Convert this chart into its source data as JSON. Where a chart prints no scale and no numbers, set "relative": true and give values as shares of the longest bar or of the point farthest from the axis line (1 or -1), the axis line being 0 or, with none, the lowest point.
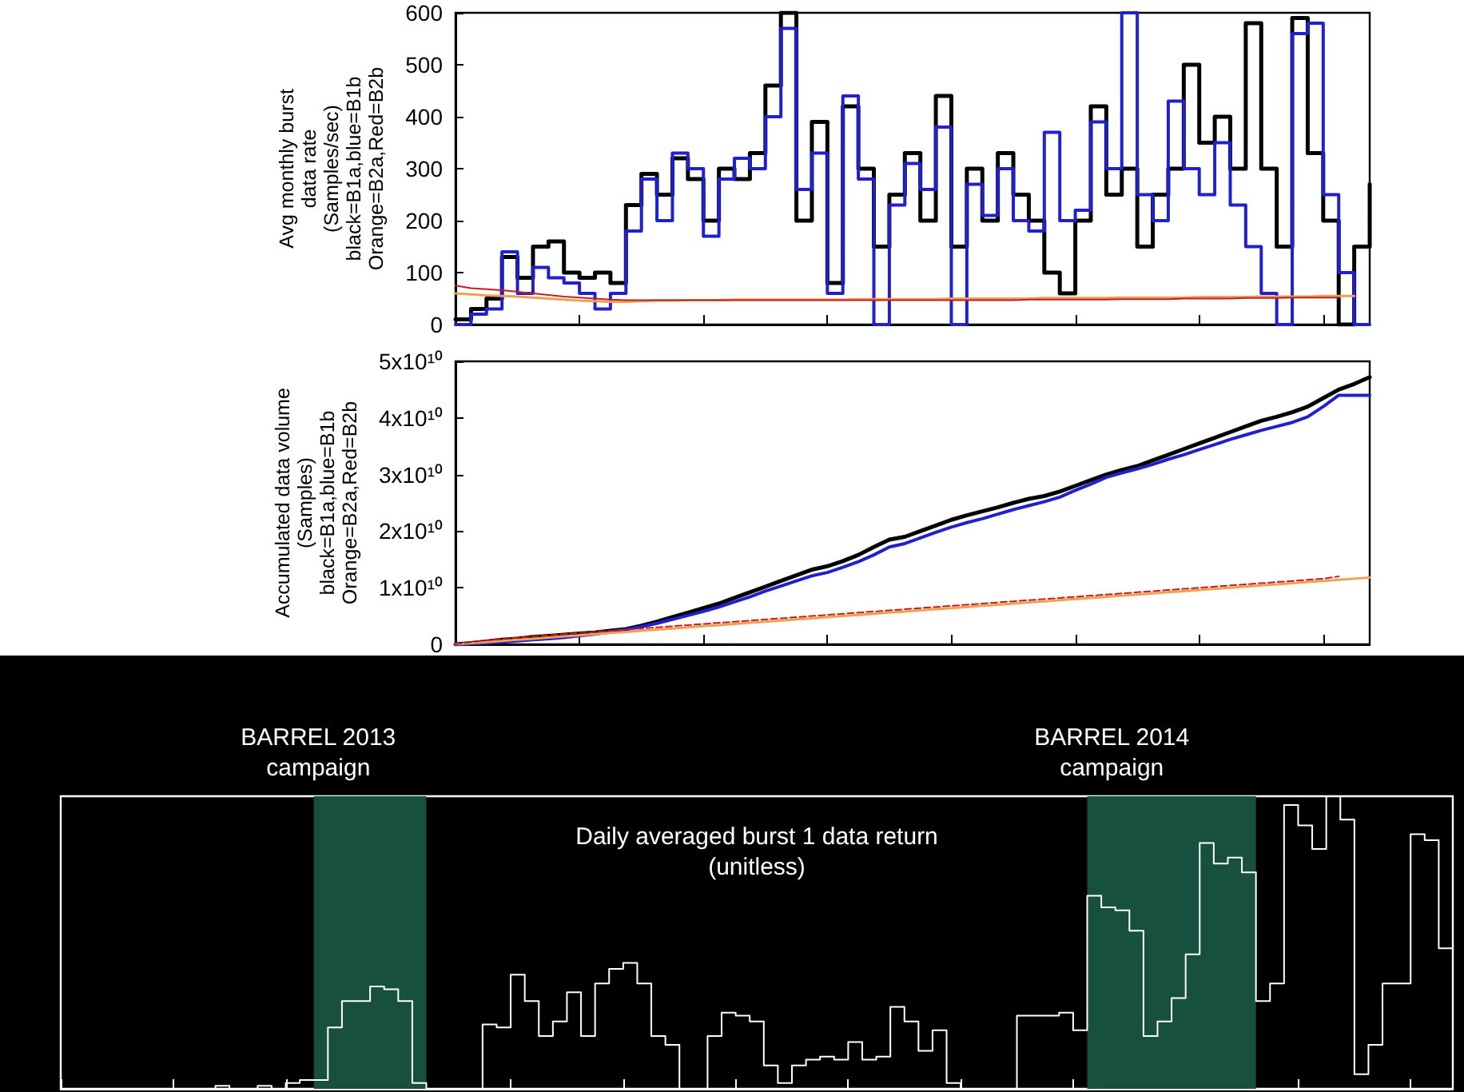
{
  "chart_data": [
    {
      "type": "step",
      "ylabel": "Avg monthly burst\ndata rate\n(Samples/sec)\nblack=B1a,blue=B1b\nOrange=B2a,Red=B2b",
      "categories": [
        null,
        null,
        null,
        null,
        null,
        null,
        null,
        null,
        null,
        null,
        null,
        null,
        null,
        null,
        null,
        null,
        null,
        null,
        null,
        null,
        null,
        null,
        null,
        null,
        null,
        null,
        null,
        null,
        null,
        null,
        null,
        null,
        null,
        null,
        null,
        null,
        null,
        null,
        null,
        null,
        null,
        null,
        null,
        null,
        null,
        null,
        null,
        null,
        null,
        null,
        null,
        null,
        null,
        null,
        null,
        null,
        null,
        null,
        null,
        null
      ],
      "ylim": [
        0,
        600
      ],
      "yticks": [
        0,
        100,
        200,
        300,
        400,
        500,
        600
      ],
      "tick_labels": "y",
      "series": [
        {
          "color": "#000000",
          "values": [
            10,
            30,
            50,
            130,
            90,
            150,
            160,
            100,
            90,
            100,
            80,
            230,
            290,
            250,
            320,
            280,
            200,
            300,
            280,
            330,
            460,
            600,
            200,
            390,
            80,
            420,
            300,
            150,
            250,
            330,
            200,
            440,
            150,
            300,
            200,
            330,
            250,
            200,
            100,
            60,
            200,
            420,
            250,
            300,
            150,
            250,
            300,
            500,
            350,
            400,
            300,
            580,
            300,
            150,
            590,
            330,
            200,
            0,
            150,
            270
          ]
        },
        {
          "color": "#2020d0",
          "values": [
            0,
            20,
            30,
            140,
            60,
            110,
            90,
            80,
            60,
            30,
            60,
            180,
            280,
            200,
            330,
            300,
            170,
            280,
            320,
            300,
            400,
            570,
            260,
            330,
            60,
            440,
            280,
            0,
            230,
            310,
            260,
            380,
            0,
            270,
            210,
            300,
            200,
            180,
            370,
            200,
            220,
            390,
            300,
            600,
            250,
            200,
            430,
            300,
            250,
            350,
            230,
            150,
            60,
            0,
            560,
            580,
            250,
            100,
            0,
            0
          ]
        },
        {
          "type": "line",
          "color": "#f0a050",
          "values": [
            60,
            58,
            56,
            55,
            54,
            52,
            50,
            48,
            46,
            45,
            44,
            44,
            45,
            46,
            46,
            47,
            47,
            47,
            48,
            48,
            48,
            48,
            48,
            48,
            48,
            48,
            49,
            49,
            49,
            49,
            49,
            49,
            50,
            50,
            50,
            50,
            50,
            50,
            51,
            51,
            51,
            51,
            51,
            52,
            52,
            52,
            52,
            52,
            53,
            53,
            53,
            53,
            54,
            54,
            54,
            54,
            55,
            55,
            55,
            null
          ]
        },
        {
          "type": "line",
          "color": "#c02020",
          "values": [
            75,
            70,
            68,
            66,
            63,
            60,
            57,
            54,
            52,
            50,
            48,
            47,
            47,
            47,
            47,
            47,
            47,
            47,
            47,
            47,
            47,
            47,
            47,
            47,
            47,
            47,
            47,
            47,
            47,
            47,
            47,
            47,
            47,
            47,
            47,
            47,
            47,
            48,
            48,
            48,
            48,
            48,
            48,
            49,
            49,
            49,
            49,
            50,
            50,
            50,
            50,
            51,
            51,
            51,
            52,
            52,
            52,
            52,
            null,
            null
          ]
        }
      ]
    },
    {
      "type": "line",
      "ylabel": "Accumulated data volume\n(Samples)\nblack=B1a,blue=B1b\nOrange=B2a,Red=B2b",
      "categories": [
        null,
        null,
        null,
        null,
        null,
        null,
        null,
        null,
        null,
        null,
        null,
        null,
        null,
        null,
        null,
        null,
        null,
        null,
        null,
        null,
        null,
        null,
        null,
        null,
        null,
        null,
        null,
        null,
        null,
        null,
        null,
        null,
        null,
        null,
        null,
        null,
        null,
        null,
        null,
        null,
        null,
        null,
        null,
        null,
        null,
        null,
        null,
        null,
        null,
        null,
        null,
        null,
        null,
        null,
        null,
        null,
        null,
        null,
        null,
        null
      ],
      "ylim": [
        0,
        50000000000
      ],
      "yticks": [
        0,
        {
          "value": 10000000000,
          "label": "1x10¹⁰"
        },
        {
          "value": 20000000000,
          "label": "2x10¹⁰"
        },
        {
          "value": 30000000000,
          "label": "3x10¹⁰"
        },
        {
          "value": 40000000000,
          "label": "4x10¹⁰"
        },
        {
          "value": 50000000000,
          "label": "5x10¹⁰"
        }
      ],
      "tick_labels": "y",
      "series": [
        {
          "color": "#000000",
          "values": [
            0,
            200000000.0,
            500000000.0,
            800000000.0,
            1000000000.0,
            1300000000.0,
            1500000000.0,
            1700000000.0,
            1900000000.0,
            2100000000.0,
            2400000000.0,
            2700000000.0,
            3300000000.0,
            4000000000.0,
            4800000000.0,
            5600000000.0,
            6400000000.0,
            7200000000.0,
            8200000000.0,
            9200000000.0,
            10200000000.0,
            11200000000.0,
            12200000000.0,
            13200000000.0,
            13800000000.0,
            14700000000.0,
            15800000000.0,
            17200000000.0,
            18500000000.0,
            19000000000.0,
            20000000000.0,
            21000000000.0,
            22000000000.0,
            22800000000.0,
            23500000000.0,
            24200000000.0,
            25000000000.0,
            25700000000.0,
            26200000000.0,
            27000000000.0,
            28000000000.0,
            29000000000.0,
            30000000000.0,
            30800000000.0,
            31500000000.0,
            32500000000.0,
            33500000000.0,
            34500000000.0,
            35500000000.0,
            36500000000.0,
            37500000000.0,
            38500000000.0,
            39500000000.0,
            40200000000.0,
            41000000000.0,
            42000000000.0,
            43500000000.0,
            45000000000.0,
            46000000000.0,
            47200000000.0
          ]
        },
        {
          "color": "#2020d0",
          "values": [
            0,
            100000000.0,
            200000000.0,
            400000000.0,
            600000000.0,
            800000000.0,
            1000000000.0,
            1200000000.0,
            1500000000.0,
            1800000000.0,
            2200000000.0,
            2600000000.0,
            3100000000.0,
            3700000000.0,
            4400000000.0,
            5100000000.0,
            5800000000.0,
            6600000000.0,
            7500000000.0,
            8400000000.0,
            9400000000.0,
            10300000000.0,
            11200000000.0,
            12100000000.0,
            12700000000.0,
            13600000000.0,
            14600000000.0,
            15800000000.0,
            17200000000.0,
            17800000000.0,
            18800000000.0,
            19800000000.0,
            20700000000.0,
            21500000000.0,
            22200000000.0,
            23000000000.0,
            23800000000.0,
            24500000000.0,
            25200000000.0,
            26000000000.0,
            27200000000.0,
            28300000000.0,
            29500000000.0,
            30300000000.0,
            31000000000.0,
            31800000000.0,
            32700000000.0,
            33500000000.0,
            34400000000.0,
            35300000000.0,
            36200000000.0,
            37000000000.0,
            37800000000.0,
            38500000000.0,
            39200000000.0,
            40200000000.0,
            42000000000.0,
            44000000000.0,
            44000000000.0,
            44000000000.0
          ]
        },
        {
          "color": "#f0a050",
          "values": [
            0,
            200000000.0,
            400000000.0,
            600000000.0,
            800000000.0,
            1000000000.0,
            1200000000.0,
            1400000000.0,
            1600000000.0,
            1800000000.0,
            2000000000.0,
            2200000000.0,
            2400000000.0,
            2600000000.0,
            2800000000.0,
            3000000000.0,
            3200000000.0,
            3400000000.0,
            3600000000.0,
            3800000000.0,
            4000000000.0,
            4200000000.0,
            4400000000.0,
            4600000000.0,
            4800000000.0,
            5000000000.0,
            5200000000.0,
            5400000000.0,
            5600000000.0,
            5800000000.0,
            6000000000.0,
            6200000000.0,
            6400000000.0,
            6600000000.0,
            6800000000.0,
            7000000000.0,
            7200000000.0,
            7400000000.0,
            7600000000.0,
            7800000000.0,
            8000000000.0,
            8200000000.0,
            8400000000.0,
            8600000000.0,
            8800000000.0,
            9000000000.0,
            9200000000.0,
            9400000000.0,
            9600000000.0,
            9800000000.0,
            10000000000.0,
            10200000000.0,
            10400000000.0,
            10600000000.0,
            10800000000.0,
            11000000000.0,
            11200000000.0,
            11400000000.0,
            11600000000.0,
            11800000000.0
          ]
        },
        {
          "color": "#c02020",
          "line_style": "dashed",
          "values": [
            0,
            400000000.0,
            700000000.0,
            1000000000.0,
            1200000000.0,
            1400000000.0,
            1600000000.0,
            1800000000.0,
            2000000000.0,
            2200000000.0,
            2400000000.0,
            2600000000.0,
            2800000000.0,
            3000000000.0,
            3200000000.0,
            3400000000.0,
            3600000000.0,
            3800000000.0,
            4000000000.0,
            4200000000.0,
            4400000000.0,
            4600000000.0,
            4800000000.0,
            5000000000.0,
            5200000000.0,
            5400000000.0,
            5600000000.0,
            5800000000.0,
            6000000000.0,
            6200000000.0,
            6400000000.0,
            6600000000.0,
            6800000000.0,
            7000000000.0,
            7200000000.0,
            7400000000.0,
            7600000000.0,
            7800000000.0,
            8000000000.0,
            8200000000.0,
            8400000000.0,
            8600000000.0,
            8800000000.0,
            9000000000.0,
            9200000000.0,
            9400000000.0,
            9600000000.0,
            9800000000.0,
            10000000000.0,
            10200000000.0,
            10400000000.0,
            10600000000.0,
            10800000000.0,
            11000000000.0,
            11200000000.0,
            11400000000.0,
            11600000000.0,
            12000000000.0,
            null,
            null
          ]
        }
      ]
    },
    {
      "type": "step",
      "relative": true,
      "tick_labels": false,
      "annotations": [
        "BARREL 2013\ncampaign",
        "BARREL 2014\ncampaign",
        "Daily averaged burst 1 data return\n(unitless)"
      ],
      "categories": [
        null,
        null,
        null,
        null,
        null,
        null,
        null,
        null,
        null,
        null,
        null,
        null,
        null,
        null,
        null,
        null,
        null,
        null,
        null,
        null,
        null,
        null,
        null,
        null,
        null,
        null,
        null,
        null,
        null,
        null,
        null,
        null,
        null,
        null,
        null,
        null,
        null,
        null,
        null,
        null,
        null,
        null,
        null,
        null,
        null,
        null,
        null,
        null,
        null,
        null,
        null,
        null,
        null,
        null,
        null,
        null,
        null,
        null,
        null,
        null,
        null,
        null,
        null,
        null,
        null,
        null,
        null,
        null,
        null,
        null,
        null,
        null,
        null,
        null,
        null,
        null,
        null,
        null,
        null,
        null,
        null,
        null,
        null,
        null,
        null,
        null,
        null,
        null,
        null,
        null,
        null,
        null,
        null,
        null,
        null,
        null,
        null,
        null,
        null,
        null
      ],
      "series": [
        {
          "color": "#ffffff",
          "values": [
            0,
            0,
            0,
            0,
            0,
            0,
            0,
            0,
            0,
            0,
            0,
            0.01,
            0,
            0,
            0.01,
            0,
            0.02,
            0.03,
            0.03,
            0.21,
            0.3,
            0.3,
            0.35,
            0.34,
            0.3,
            0.02,
            0,
            0,
            0,
            0,
            0.22,
            0.21,
            0.39,
            0.3,
            0.18,
            0.23,
            0.33,
            0.18,
            0.36,
            0.41,
            0.43,
            0.36,
            0.18,
            0.15,
            0,
            0,
            0.18,
            0.26,
            0.25,
            0.23,
            0.08,
            0.02,
            0.08,
            0.1,
            0.11,
            0.1,
            0.16,
            0.1,
            0.11,
            0.28,
            0.23,
            0.13,
            0.2,
            0.02,
            0,
            0,
            0,
            0,
            0.25,
            0.25,
            0.25,
            0.26,
            0.2,
            0.66,
            0.62,
            0.61,
            0.54,
            0.18,
            0.23,
            0.31,
            0.46,
            0.84,
            0.77,
            0.79,
            0.74,
            0.3,
            0.36,
            0.97,
            0.9,
            0.82,
            1,
            0.92,
            0.05,
            0.15,
            0.36,
            0.36,
            0.87,
            0.85,
            0.48,
            0.49
          ]
        }
      ]
    }
  ]
}
